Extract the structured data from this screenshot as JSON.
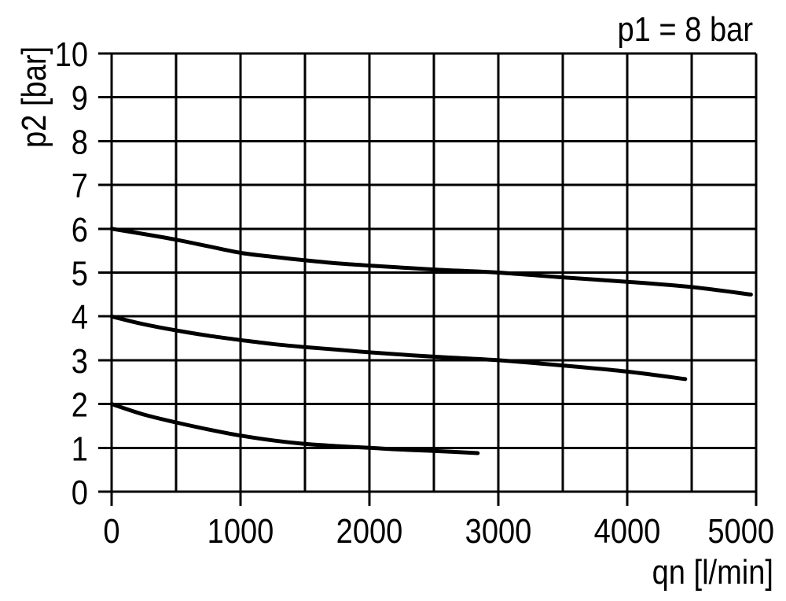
{
  "chart_data": {
    "type": "line",
    "title": "p1 = 8 bar",
    "xlabel": "qn [l/min]",
    "ylabel": "p2 [bar]",
    "xlim": [
      0,
      5000
    ],
    "ylim": [
      0,
      10
    ],
    "x_ticks": [
      0,
      1000,
      2000,
      3000,
      4000,
      5000
    ],
    "x_tick_labels": [
      "0",
      "1000",
      "2000",
      "3000",
      "4000",
      "5000"
    ],
    "x_minor_grid_step": 500,
    "y_ticks": [
      0,
      1,
      2,
      3,
      4,
      5,
      6,
      7,
      8,
      9,
      10
    ],
    "y_tick_labels": [
      "0",
      "1",
      "2",
      "3",
      "4",
      "5",
      "6",
      "7",
      "8",
      "9",
      "10"
    ],
    "grid": "on",
    "legend": "none",
    "line_color": "#000000",
    "series": [
      {
        "name": "curve-6-bar",
        "points": [
          [
            0,
            6.0
          ],
          [
            250,
            5.88
          ],
          [
            500,
            5.75
          ],
          [
            750,
            5.6
          ],
          [
            1000,
            5.45
          ],
          [
            1250,
            5.36
          ],
          [
            1500,
            5.28
          ],
          [
            1750,
            5.21
          ],
          [
            2000,
            5.16
          ],
          [
            2500,
            5.07
          ],
          [
            3000,
            5.0
          ],
          [
            3500,
            4.89
          ],
          [
            4000,
            4.79
          ],
          [
            4500,
            4.67
          ],
          [
            4960,
            4.5
          ]
        ]
      },
      {
        "name": "curve-4-bar",
        "points": [
          [
            0,
            4.0
          ],
          [
            250,
            3.82
          ],
          [
            500,
            3.68
          ],
          [
            750,
            3.56
          ],
          [
            1000,
            3.46
          ],
          [
            1250,
            3.37
          ],
          [
            1500,
            3.3
          ],
          [
            1750,
            3.24
          ],
          [
            2000,
            3.18
          ],
          [
            2500,
            3.08
          ],
          [
            3000,
            3.0
          ],
          [
            3500,
            2.88
          ],
          [
            4000,
            2.74
          ],
          [
            4450,
            2.57
          ]
        ]
      },
      {
        "name": "curve-2-bar",
        "points": [
          [
            0,
            2.0
          ],
          [
            250,
            1.76
          ],
          [
            500,
            1.58
          ],
          [
            750,
            1.42
          ],
          [
            1000,
            1.28
          ],
          [
            1250,
            1.17
          ],
          [
            1500,
            1.09
          ],
          [
            1750,
            1.04
          ],
          [
            2000,
            1.0
          ],
          [
            2250,
            0.96
          ],
          [
            2500,
            0.93
          ],
          [
            2840,
            0.88
          ]
        ]
      }
    ]
  }
}
